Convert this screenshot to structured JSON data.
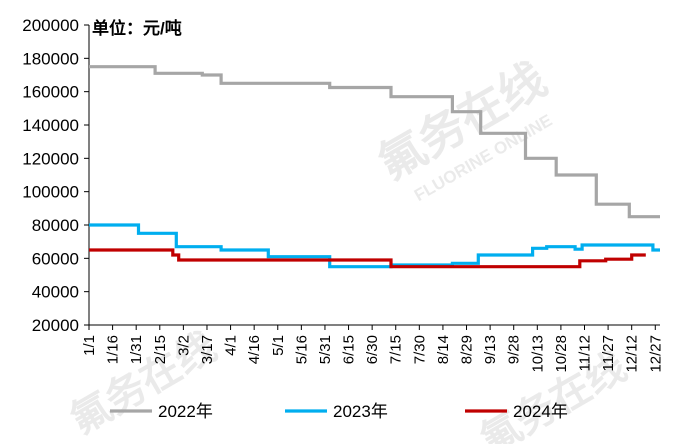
{
  "watermark": {
    "cn": "氟务在线",
    "en": "FLUORINE ONLINE"
  },
  "chart_data": {
    "type": "line",
    "unit_label": "单位：元/吨",
    "categories": [
      "1/1",
      "1/16",
      "1/31",
      "2/15",
      "3/2",
      "3/17",
      "4/1",
      "4/16",
      "5/1",
      "5/16",
      "5/31",
      "6/15",
      "6/30",
      "7/15",
      "7/30",
      "8/14",
      "8/29",
      "9/13",
      "9/28",
      "10/13",
      "10/28",
      "11/12",
      "11/27",
      "12/12",
      "12/27"
    ],
    "ylim": [
      20000,
      200000
    ],
    "yticks": [
      "20000",
      "40000",
      "60000",
      "80000",
      "100000",
      "120000",
      "140000",
      "160000",
      "180000",
      "200000"
    ],
    "grid": false,
    "legend_position": "bottom",
    "series": [
      {
        "name": "2022年",
        "color": "#a6a6a6",
        "x": [
          0,
          2.8,
          2.8,
          4.8,
          4.8,
          5.6,
          5.6,
          6.8,
          6.8,
          7.6,
          7.6,
          10.2,
          10.2,
          11.8,
          11.8,
          12.8,
          12.8,
          13.8,
          13.8,
          15.4,
          15.4,
          16.6,
          16.6,
          18.5,
          18.5,
          19.8,
          19.8,
          21.5,
          21.5,
          22.9,
          22.9,
          23.7,
          23.7,
          24.2
        ],
        "values": [
          175000,
          175000,
          171000,
          171000,
          170000,
          170000,
          165000,
          165000,
          165000,
          165000,
          165000,
          165000,
          162500,
          162500,
          162500,
          162500,
          157000,
          157000,
          157000,
          157000,
          148000,
          148000,
          135000,
          135000,
          120000,
          120000,
          110000,
          110000,
          92500,
          92500,
          85000,
          85000,
          85000,
          85000
        ]
      },
      {
        "name": "2023年",
        "color": "#00aeef",
        "x": [
          0,
          2.1,
          2.1,
          3.7,
          3.7,
          5.6,
          5.6,
          7.6,
          7.6,
          9.0,
          9.0,
          10.2,
          10.2,
          11.8,
          11.8,
          12.8,
          12.8,
          13.7,
          13.7,
          15.4,
          15.4,
          16.5,
          16.5,
          17.7,
          17.7,
          18.8,
          18.8,
          19.4,
          19.4,
          20.6,
          20.6,
          20.9,
          20.9,
          23.9,
          23.9,
          24.2
        ],
        "values": [
          80000,
          80000,
          75000,
          75000,
          67000,
          67000,
          65000,
          65000,
          61000,
          61000,
          61000,
          61000,
          55000,
          55000,
          55000,
          55000,
          56000,
          56000,
          56000,
          56000,
          57000,
          57000,
          62000,
          62000,
          62000,
          62000,
          66000,
          66000,
          67000,
          67000,
          65500,
          65500,
          68000,
          68000,
          65000,
          65000
        ]
      },
      {
        "name": "2024年",
        "color": "#c00000",
        "x": [
          0,
          3.55,
          3.55,
          3.8,
          3.8,
          12.8,
          12.8,
          18.5,
          18.5,
          20.8,
          20.8,
          21.9,
          21.9,
          23.0,
          23.0,
          23.6
        ],
        "values": [
          65000,
          65000,
          62000,
          62000,
          59000,
          59000,
          55000,
          55000,
          55000,
          55000,
          58500,
          58500,
          59500,
          59500,
          62000,
          62000
        ]
      }
    ]
  }
}
